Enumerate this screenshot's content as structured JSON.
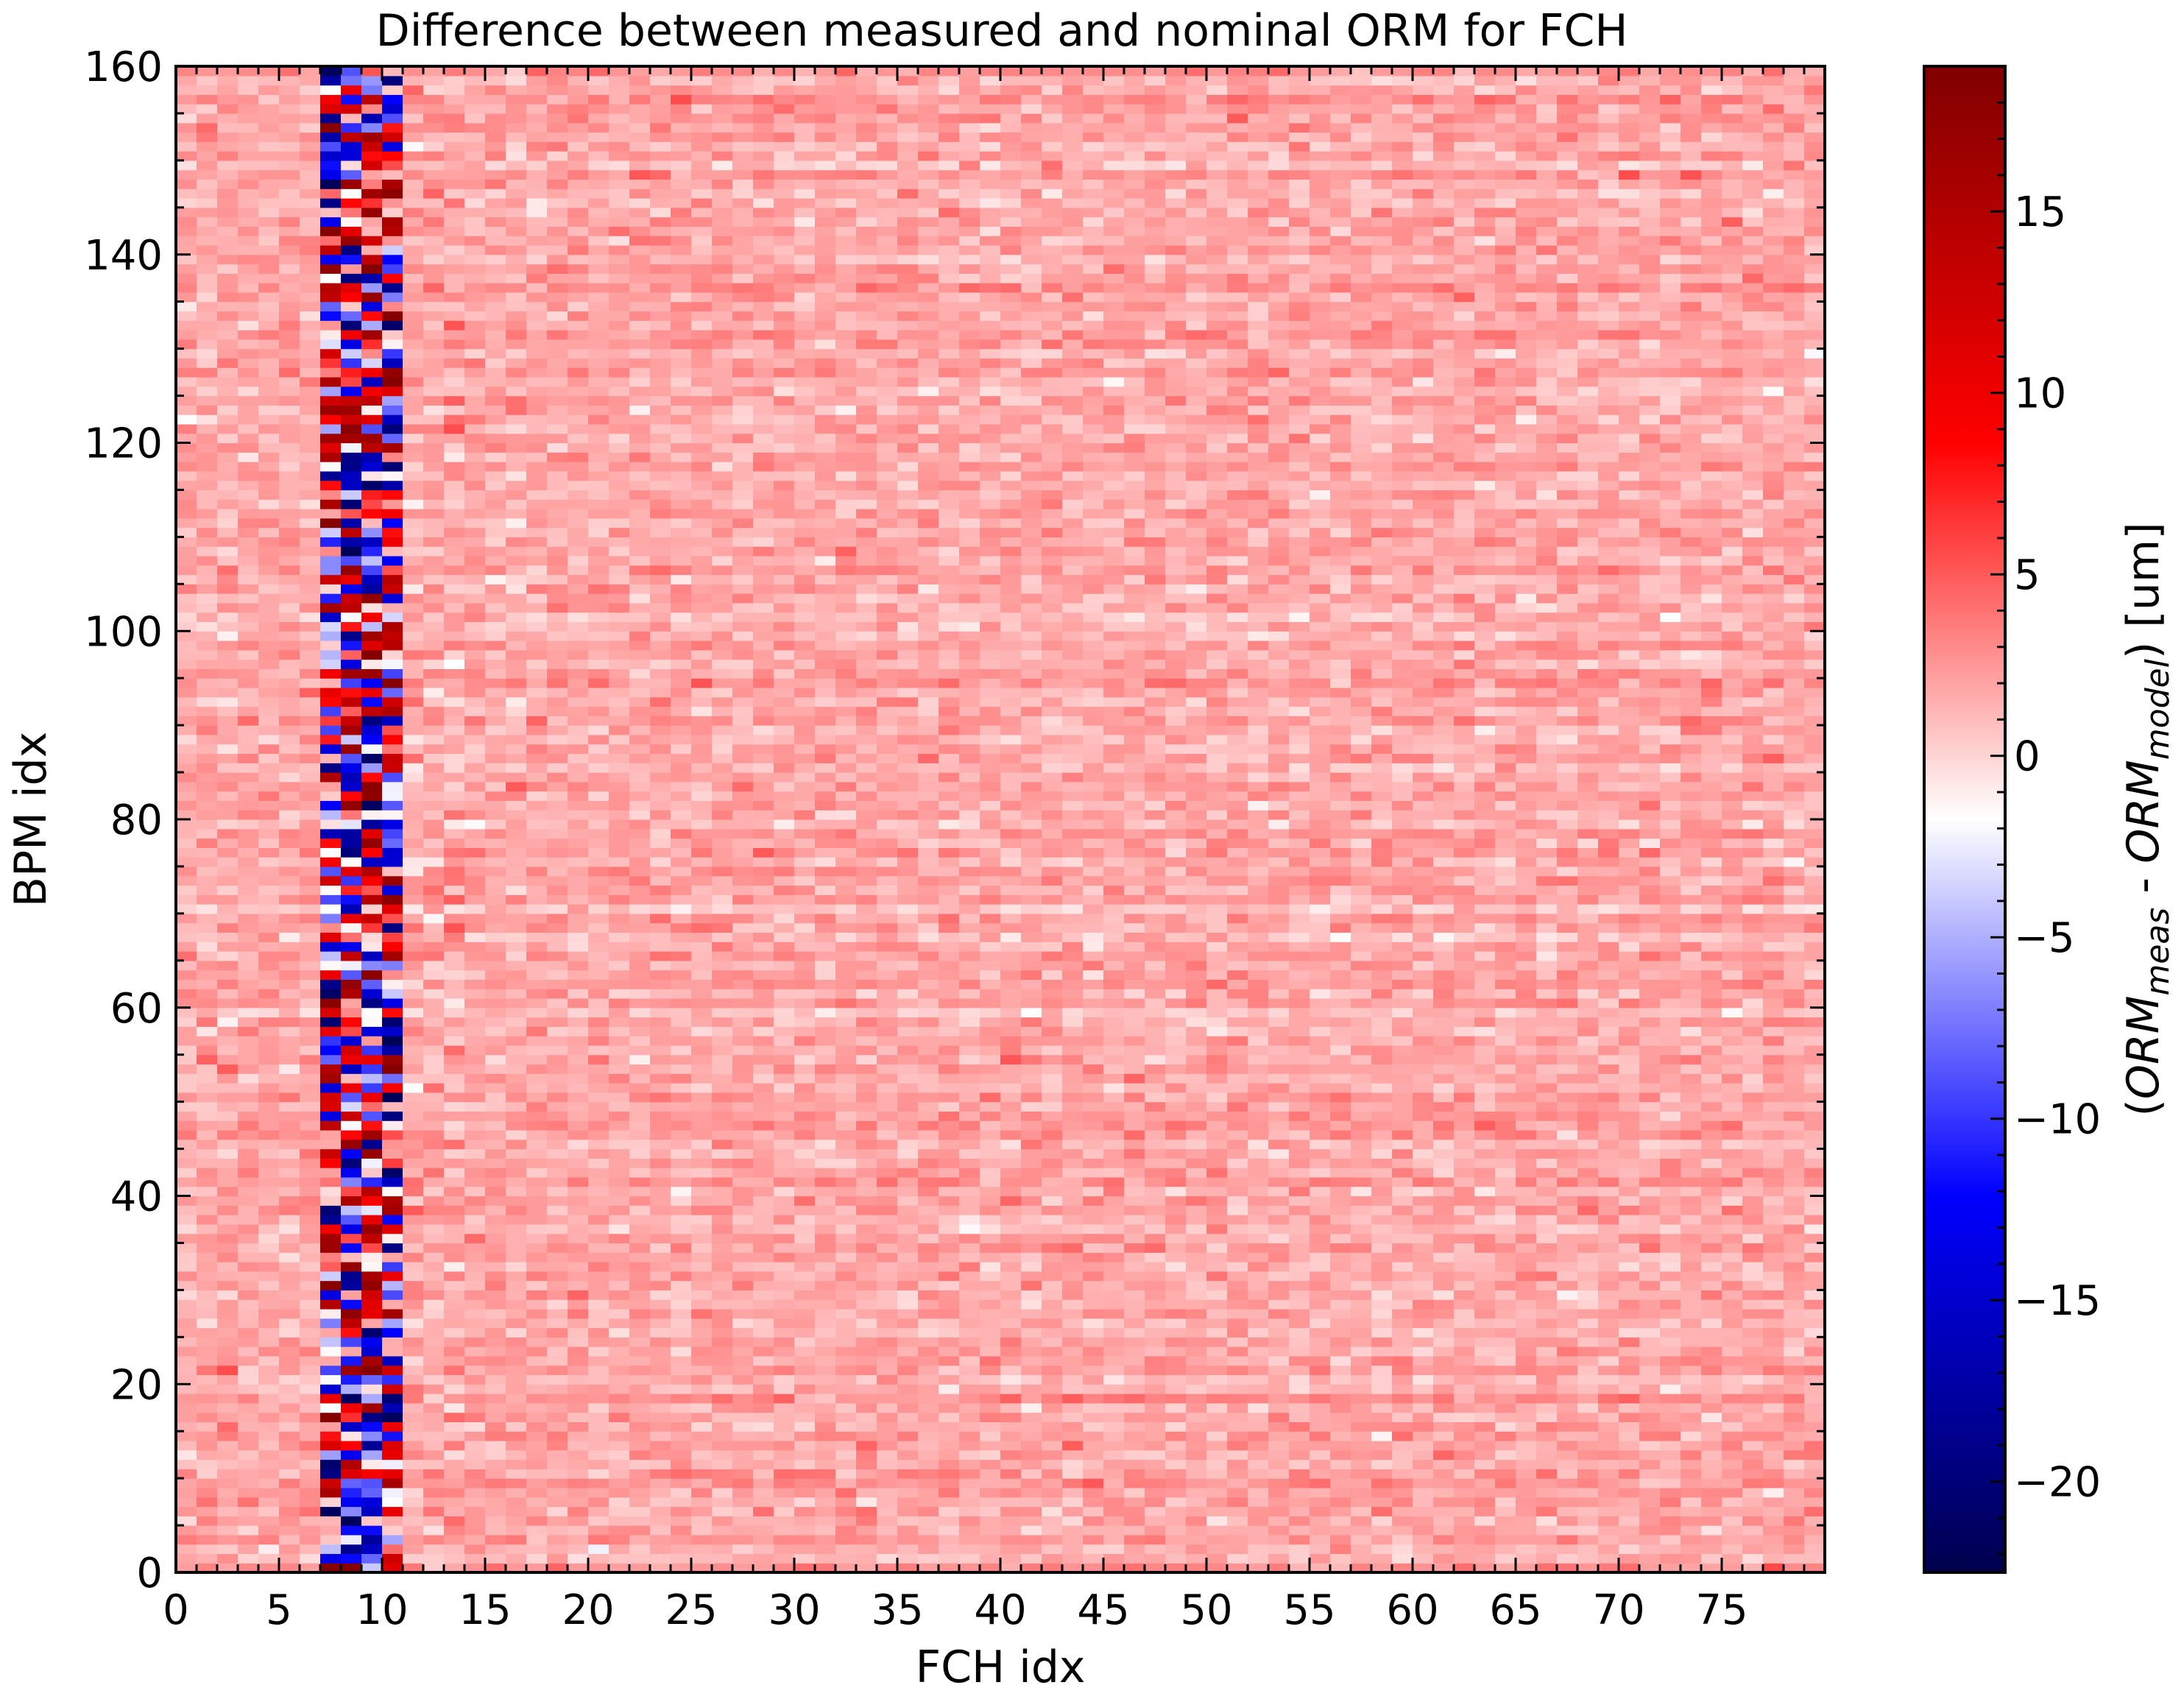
{
  "chart_data": {
    "type": "heatmap",
    "title": "Difference between measured and nominal ORM for FCH",
    "xlabel": "FCH idx",
    "ylabel": "BPM idx",
    "xlim": [
      0,
      80
    ],
    "ylim": [
      0,
      160
    ],
    "grid": false,
    "n_cols": 80,
    "n_rows": 160,
    "x_ticks": [
      0,
      5,
      10,
      15,
      20,
      25,
      30,
      35,
      40,
      45,
      50,
      55,
      60,
      65,
      70,
      75
    ],
    "y_ticks": [
      0,
      20,
      40,
      60,
      80,
      100,
      120,
      140,
      160
    ],
    "x_tick_labels": [
      "0",
      "5",
      "10",
      "15",
      "20",
      "25",
      "30",
      "35",
      "40",
      "45",
      "50",
      "55",
      "60",
      "65",
      "70",
      "75"
    ],
    "y_tick_labels": [
      "0",
      "20",
      "40",
      "60",
      "80",
      "100",
      "120",
      "140",
      "160"
    ],
    "colormap": "seismic",
    "colormap_stops": [
      "#00004c",
      "#0000ff",
      "#ffffff",
      "#ff0000",
      "#800000"
    ],
    "color_range": [
      -22.5,
      19
    ],
    "colorbar": {
      "label_parts": [
        "(",
        "ORM",
        "meas",
        " - ",
        "ORM",
        "model",
        ") [um]"
      ],
      "ticks": [
        -20,
        -15,
        -10,
        -5,
        0,
        5,
        10,
        15
      ],
      "tick_labels": [
        "−20",
        "−15",
        "−10",
        "−5",
        "0",
        "5",
        "10",
        "15"
      ]
    },
    "value_summary": {
      "background_mean": 1.8,
      "background_spread": 1.3,
      "high_variance_columns": [
        7,
        8,
        9,
        10
      ],
      "high_variance_range": [
        -22,
        19
      ],
      "note_values_estimated": true
    },
    "values_generator_seed": 12345
  }
}
